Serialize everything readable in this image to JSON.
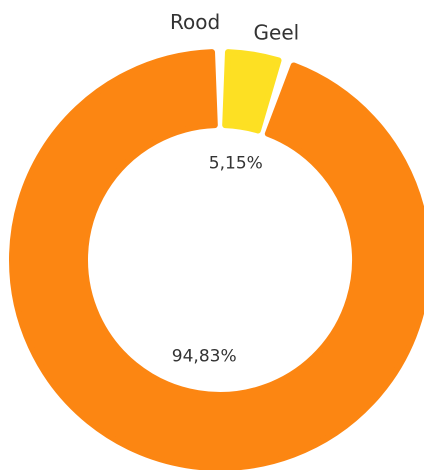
{
  "chart_data": {
    "type": "donut",
    "categories": [
      "Rood",
      "Geel"
    ],
    "values": [
      94.83,
      5.15
    ],
    "value_labels": [
      "94,83%",
      "5,15%"
    ],
    "colors": [
      "#fc8612",
      "#fde023"
    ]
  }
}
